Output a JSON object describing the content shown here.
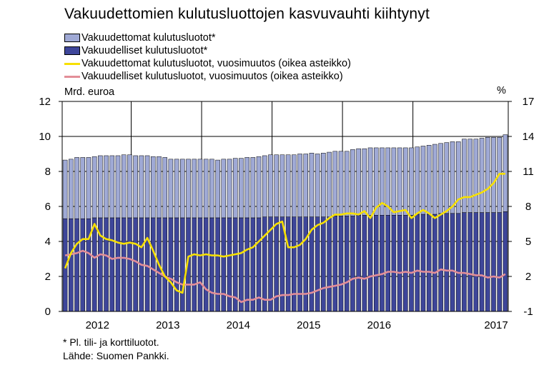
{
  "title": "Vakuudettomien kulutusluottojen kasvuvauhti kiihtynyt",
  "legend": [
    {
      "label": "Vakuudettomat kulutusluotot*",
      "kind": "bar"
    },
    {
      "label": "Vakuudelliset kulutusluotot*",
      "kind": "bar"
    },
    {
      "label": "Vakuudettomat kulutusluotot, vuosimuutos (oikea asteikko)",
      "kind": "line"
    },
    {
      "label": "Vakuudelliset kulutusluotot, vuosimuutos (oikea asteikko)",
      "kind": "line"
    }
  ],
  "left_unit": "Mrd. euroa",
  "right_unit": "%",
  "footnote": "* Pl. tili- ja korttiluotot.",
  "source": "Lähde: Suomen Pankki.",
  "colors": {
    "unsecured_bar": "#9fa9d5",
    "secured_bar": "#3e469a",
    "unsecured_line": "#f7e000",
    "secured_line": "#e38e98"
  },
  "chart_data": {
    "type": "bar",
    "stacked": true,
    "x_tick_labels": [
      "2012",
      "2013",
      "2014",
      "2015",
      "2016",
      "2017"
    ],
    "x_start": "2012-01",
    "frequency": "monthly",
    "left_axis": {
      "label": "Mrd. euroa",
      "ylim": [
        0,
        12
      ],
      "ticks": [
        "0",
        "2",
        "4",
        "6",
        "8",
        "10",
        "12"
      ]
    },
    "right_axis": {
      "label": "%",
      "ylim": [
        -1,
        17
      ],
      "ticks": [
        "-1",
        "2",
        "5",
        "8",
        "11",
        "14",
        "17"
      ]
    },
    "series": [
      {
        "name": "Vakuudelliset kulutusluotot*",
        "type": "bar",
        "axis": "left",
        "values": [
          5.3,
          5.3,
          5.3,
          5.3,
          5.3,
          5.35,
          5.35,
          5.35,
          5.35,
          5.35,
          5.35,
          5.35,
          5.35,
          5.35,
          5.35,
          5.35,
          5.35,
          5.35,
          5.35,
          5.35,
          5.35,
          5.35,
          5.35,
          5.35,
          5.35,
          5.35,
          5.35,
          5.35,
          5.35,
          5.35,
          5.35,
          5.35,
          5.35,
          5.35,
          5.4,
          5.4,
          5.4,
          5.4,
          5.4,
          5.4,
          5.4,
          5.4,
          5.4,
          5.4,
          5.4,
          5.4,
          5.45,
          5.45,
          5.45,
          5.45,
          5.5,
          5.5,
          5.5,
          5.5,
          5.5,
          5.5,
          5.5,
          5.5,
          5.5,
          5.5,
          5.55,
          5.55,
          5.55,
          5.55,
          5.6,
          5.6,
          5.6,
          5.6,
          5.65,
          5.65,
          5.65,
          5.65,
          5.65,
          5.65,
          5.65,
          5.7
        ]
      },
      {
        "name": "Vakuudettomat kulutusluotot*",
        "type": "bar",
        "axis": "left",
        "values": [
          3.35,
          3.4,
          3.5,
          3.5,
          3.5,
          3.5,
          3.55,
          3.55,
          3.55,
          3.55,
          3.6,
          3.6,
          3.55,
          3.55,
          3.55,
          3.5,
          3.5,
          3.45,
          3.35,
          3.35,
          3.35,
          3.35,
          3.35,
          3.35,
          3.35,
          3.35,
          3.3,
          3.35,
          3.35,
          3.4,
          3.4,
          3.45,
          3.45,
          3.5,
          3.5,
          3.55,
          3.55,
          3.55,
          3.55,
          3.55,
          3.6,
          3.6,
          3.65,
          3.6,
          3.65,
          3.7,
          3.7,
          3.7,
          3.7,
          3.8,
          3.8,
          3.8,
          3.85,
          3.85,
          3.85,
          3.85,
          3.85,
          3.85,
          3.85,
          3.85,
          3.85,
          3.9,
          3.95,
          4.0,
          4.0,
          4.05,
          4.1,
          4.1,
          4.2,
          4.2,
          4.2,
          4.25,
          4.3,
          4.3,
          4.3,
          4.4
        ]
      },
      {
        "name": "Vakuudettomat kulutusluotot, vuosimuutos (oikea asteikko)",
        "type": "line",
        "axis": "right",
        "values": [
          2.7,
          4.0,
          4.8,
          5.2,
          5.2,
          6.5,
          5.5,
          5.2,
          5.1,
          4.9,
          4.8,
          4.9,
          4.8,
          4.5,
          5.3,
          4.2,
          3.0,
          2.0,
          1.5,
          0.8,
          0.6,
          3.7,
          3.9,
          3.8,
          3.9,
          3.8,
          3.8,
          3.7,
          3.8,
          3.9,
          4.0,
          4.3,
          4.5,
          5.0,
          5.5,
          6.0,
          6.5,
          6.7,
          4.5,
          4.5,
          4.7,
          5.2,
          6.0,
          6.4,
          6.6,
          7.0,
          7.3,
          7.3,
          7.4,
          7.4,
          7.3,
          7.6,
          7.0,
          7.9,
          8.3,
          8.0,
          7.5,
          7.6,
          7.7,
          7.0,
          7.4,
          7.7,
          7.4,
          7.0,
          7.3,
          7.6,
          8.0,
          8.6,
          8.8,
          8.8,
          9.0,
          9.2,
          9.5,
          10.0,
          10.8,
          10.8
        ]
      },
      {
        "name": "Vakuudelliset kulutusluotot, vuosimuutos (oikea asteikko)",
        "type": "line",
        "axis": "right",
        "values": [
          3.8,
          3.9,
          4.0,
          4.2,
          4.0,
          3.6,
          3.9,
          3.8,
          3.5,
          3.6,
          3.6,
          3.5,
          3.3,
          3.0,
          2.9,
          2.6,
          2.3,
          2.0,
          1.8,
          1.5,
          1.3,
          1.3,
          1.3,
          1.5,
          0.9,
          0.6,
          0.5,
          0.5,
          0.3,
          0.2,
          -0.2,
          0.0,
          0.0,
          0.2,
          0.0,
          0.0,
          0.3,
          0.4,
          0.4,
          0.5,
          0.5,
          0.5,
          0.6,
          0.8,
          1.0,
          1.1,
          1.2,
          1.3,
          1.5,
          1.8,
          1.9,
          1.8,
          2.0,
          2.1,
          2.2,
          2.4,
          2.4,
          2.3,
          2.4,
          2.3,
          2.5,
          2.4,
          2.4,
          2.3,
          2.6,
          2.5,
          2.5,
          2.3,
          2.3,
          2.2,
          2.1,
          2.1,
          1.9,
          2.0,
          1.9,
          2.2
        ]
      }
    ]
  }
}
